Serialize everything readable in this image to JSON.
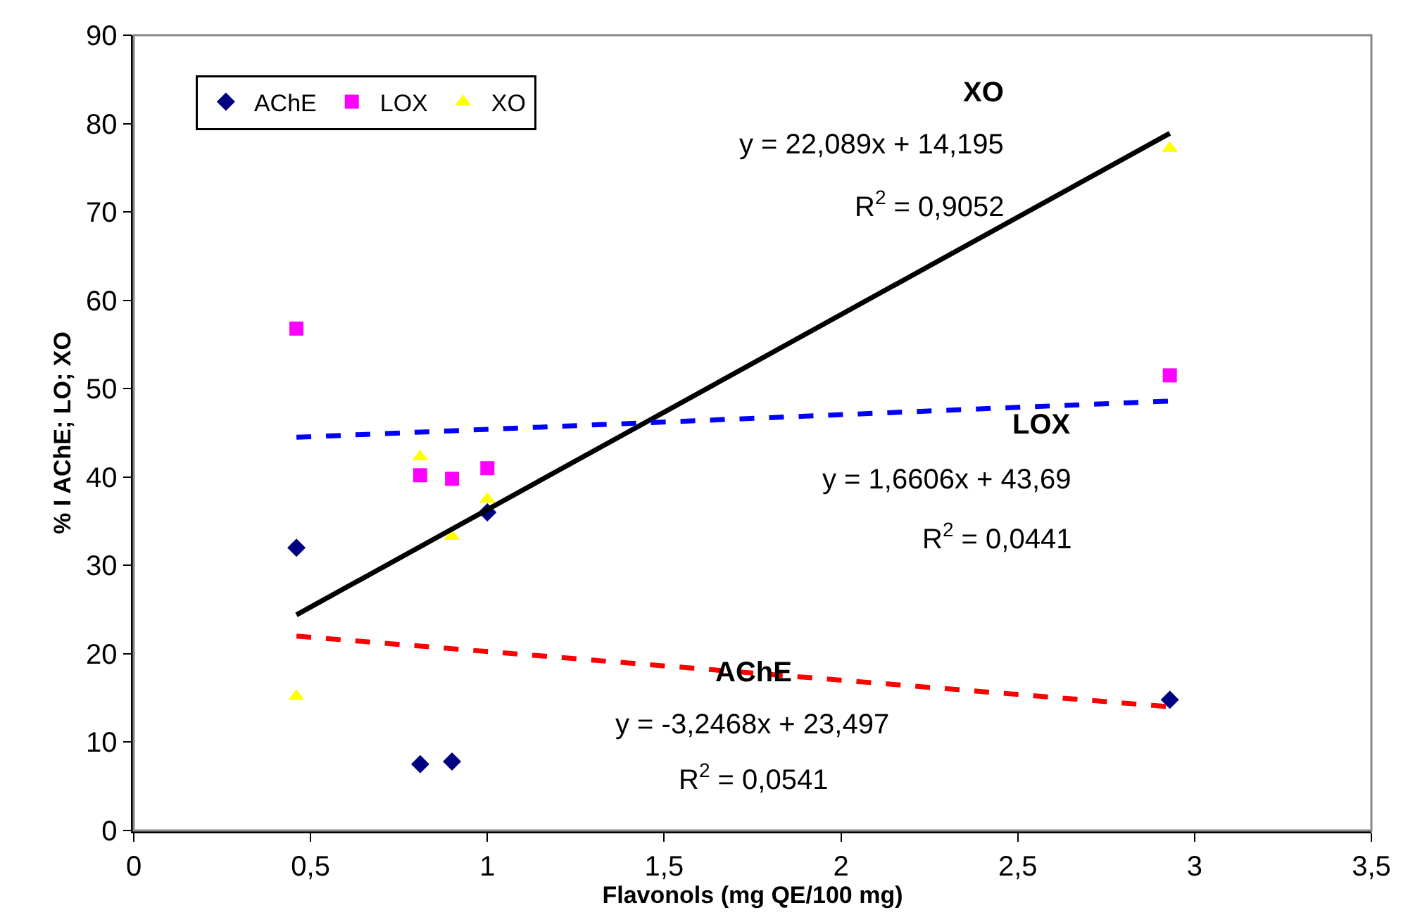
{
  "chart_data": {
    "type": "scatter",
    "xlabel": "Flavonols (mg QE/100 mg)",
    "ylabel": "% I AChE; LO; XO",
    "xlim": [
      0,
      3.5
    ],
    "xticks": [
      0,
      {
        "value": 0.5,
        "label": "0,5"
      },
      1,
      {
        "value": 1.5,
        "label": "1,5"
      },
      2,
      {
        "value": 2.5,
        "label": "2,5"
      },
      3,
      {
        "value": 3.5,
        "label": "3,5"
      }
    ],
    "ylim": [
      0,
      90
    ],
    "yticks": [
      0,
      10,
      20,
      30,
      40,
      50,
      60,
      70,
      80,
      90
    ],
    "legend": "top left",
    "series": [
      {
        "name": "AChE",
        "color": "#000080",
        "marker": "diamond",
        "x": [
          0.46,
          0.81,
          0.9,
          1.0,
          2.93
        ],
        "values": [
          32,
          7.5,
          7.8,
          36,
          14.8
        ]
      },
      {
        "name": "LOX",
        "color": "#ff00ff",
        "marker": "square",
        "x": [
          0.46,
          0.81,
          0.9,
          1.0,
          2.93
        ],
        "values": [
          56.8,
          40.2,
          39.8,
          41,
          51.5
        ]
      },
      {
        "name": "XO",
        "color": "#ffff00",
        "marker": "triangle",
        "x": [
          0.46,
          0.81,
          0.9,
          1.0,
          2.93
        ],
        "values": [
          15.2,
          42.3,
          33.3,
          37.5,
          77.2
        ]
      },
      {
        "type": "line",
        "color": "#000000",
        "line_style": "solid",
        "marker": "none",
        "x": [
          0.46,
          2.93
        ],
        "values": [
          24.4,
          78.9
        ]
      },
      {
        "type": "line",
        "color": "#0000ff",
        "line_style": "dashed",
        "marker": "none",
        "x": [
          0.46,
          2.93
        ],
        "values": [
          44.5,
          48.6
        ]
      },
      {
        "type": "line",
        "color": "#ff0000",
        "line_style": "dashed",
        "marker": "none",
        "x": [
          0.46,
          2.93
        ],
        "values": [
          22,
          14
        ]
      }
    ],
    "annotations": [
      "XO",
      "y = 22,089x + 14,195",
      "R$^{2}$ = 0,9052",
      "LOX",
      "y = 1,6606x + 43,69",
      "R$^{2}$ = 0,0441",
      "AChE",
      "y = -3,2468x + 23,497",
      "R$^{2}$ = 0,0541"
    ]
  }
}
